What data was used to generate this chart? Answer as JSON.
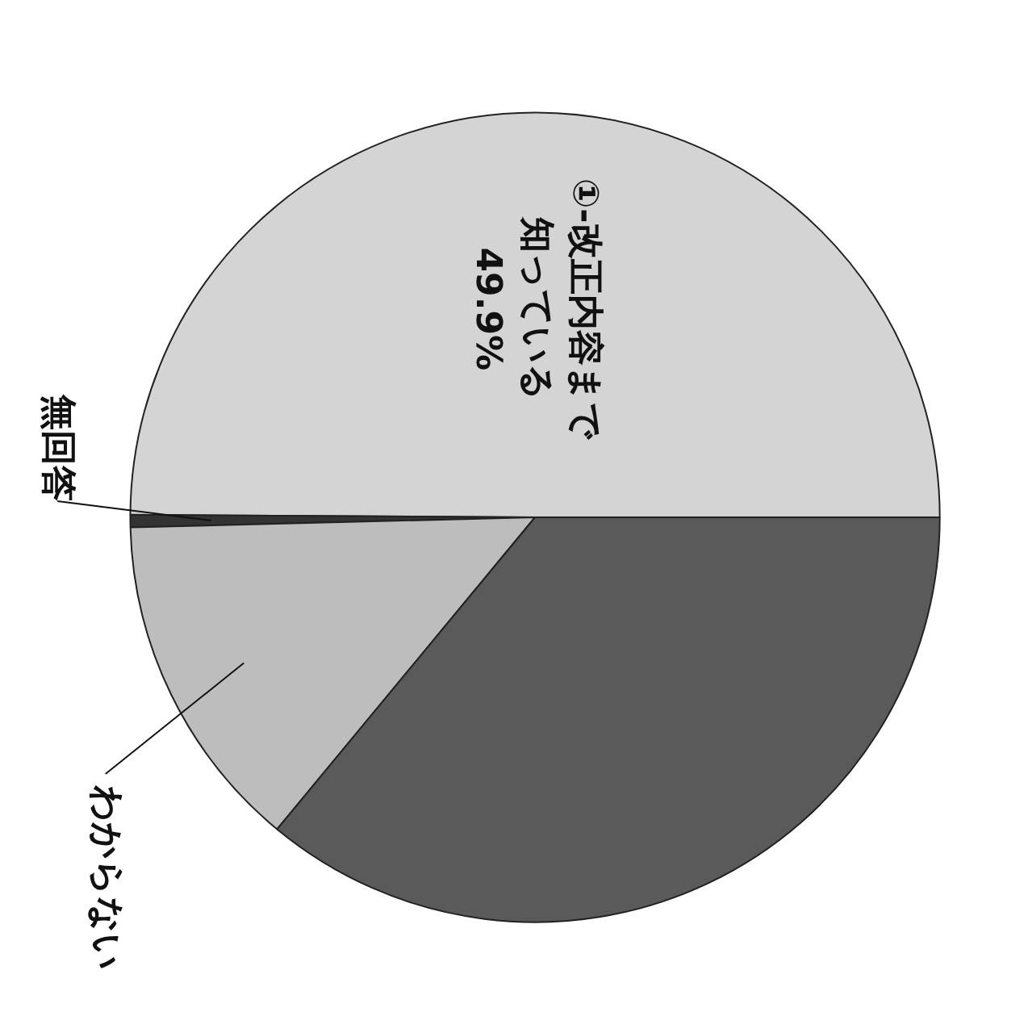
{
  "chart_data": {
    "type": "pie",
    "categories": [
      "①-改正内容まで知っている",
      "無回答",
      "わからない",
      null
    ],
    "values": [
      49.9,
      0.5,
      13.6,
      36.0
    ],
    "colors": [
      "#d4d4d4",
      "#333333",
      "#bdbdbd",
      "#5a5a5a"
    ],
    "value_labels": [
      "49.9%",
      null,
      null,
      null
    ]
  }
}
